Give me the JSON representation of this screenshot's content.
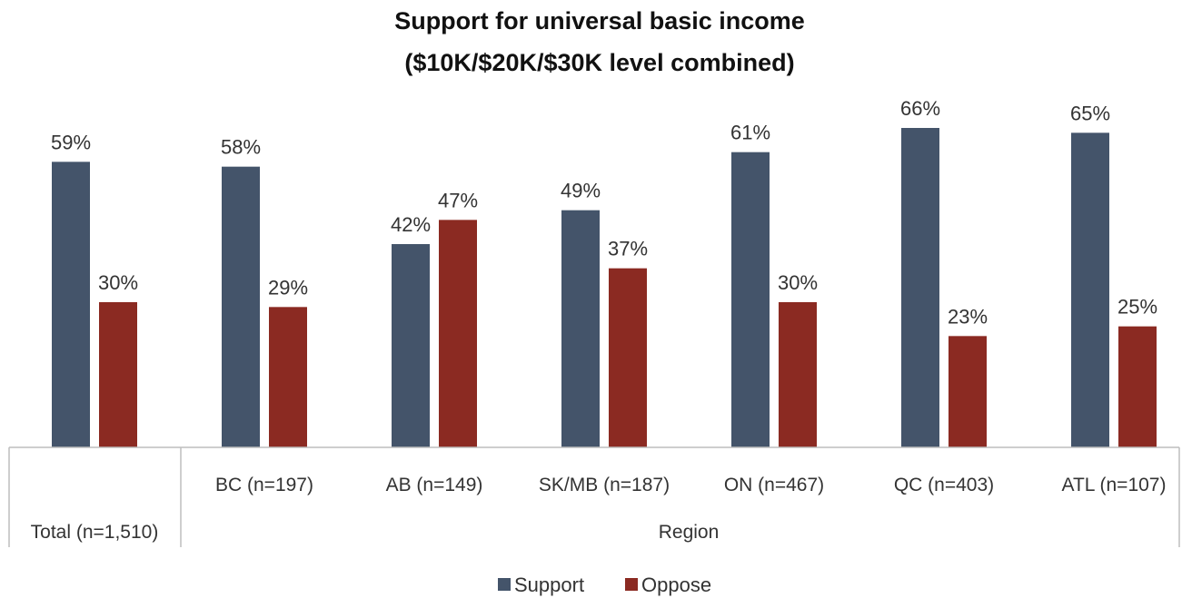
{
  "chart_data": {
    "type": "bar",
    "title": "Support for universal basic income",
    "subtitle": "($10K/$20K/$30K level combined)",
    "categories": [
      "Total (n=1,510)",
      "BC (n=197)",
      "AB (n=149)",
      "SK/MB (n=187)",
      "ON (n=467)",
      "QC (n=403)",
      "ATL (n=107)"
    ],
    "group_label": "Region",
    "series": [
      {
        "name": "Support",
        "color": "#44546A",
        "values": [
          59,
          58,
          42,
          49,
          61,
          66,
          65
        ],
        "labels": [
          "59%",
          "58%",
          "42%",
          "49%",
          "61%",
          "66%",
          "65%"
        ]
      },
      {
        "name": "Oppose",
        "color": "#8B2A22",
        "values": [
          30,
          29,
          47,
          37,
          30,
          23,
          25
        ],
        "labels": [
          "30%",
          "29%",
          "47%",
          "37%",
          "30%",
          "23%",
          "25%"
        ]
      }
    ],
    "ylim": [
      0,
      70
    ],
    "grid": false,
    "legend_position": "bottom"
  }
}
